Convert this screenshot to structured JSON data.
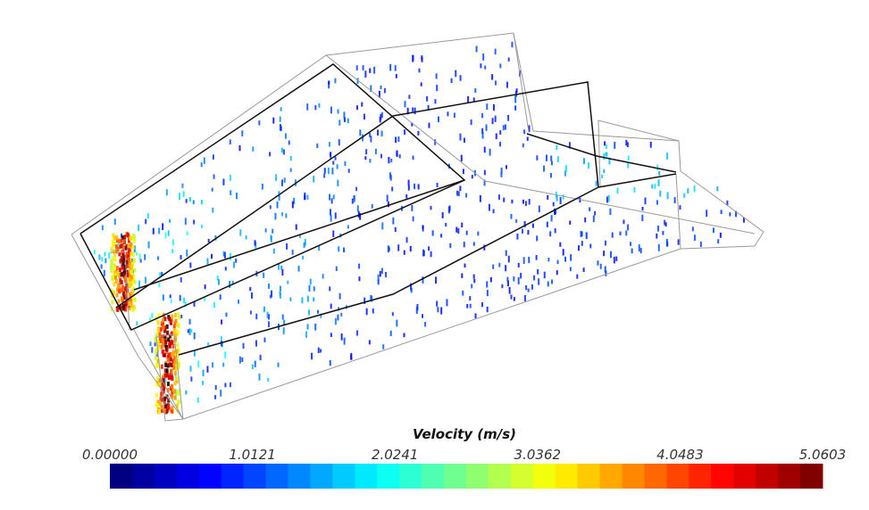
{
  "colorbar": {
    "title": "Velocity (m/s)",
    "range": [
      0,
      5.0603
    ],
    "ticks": [
      {
        "value": 0,
        "label": "0.00000"
      },
      1.0121,
      2.0241,
      3.0362,
      4.0483,
      5.0603
    ]
  }
}
